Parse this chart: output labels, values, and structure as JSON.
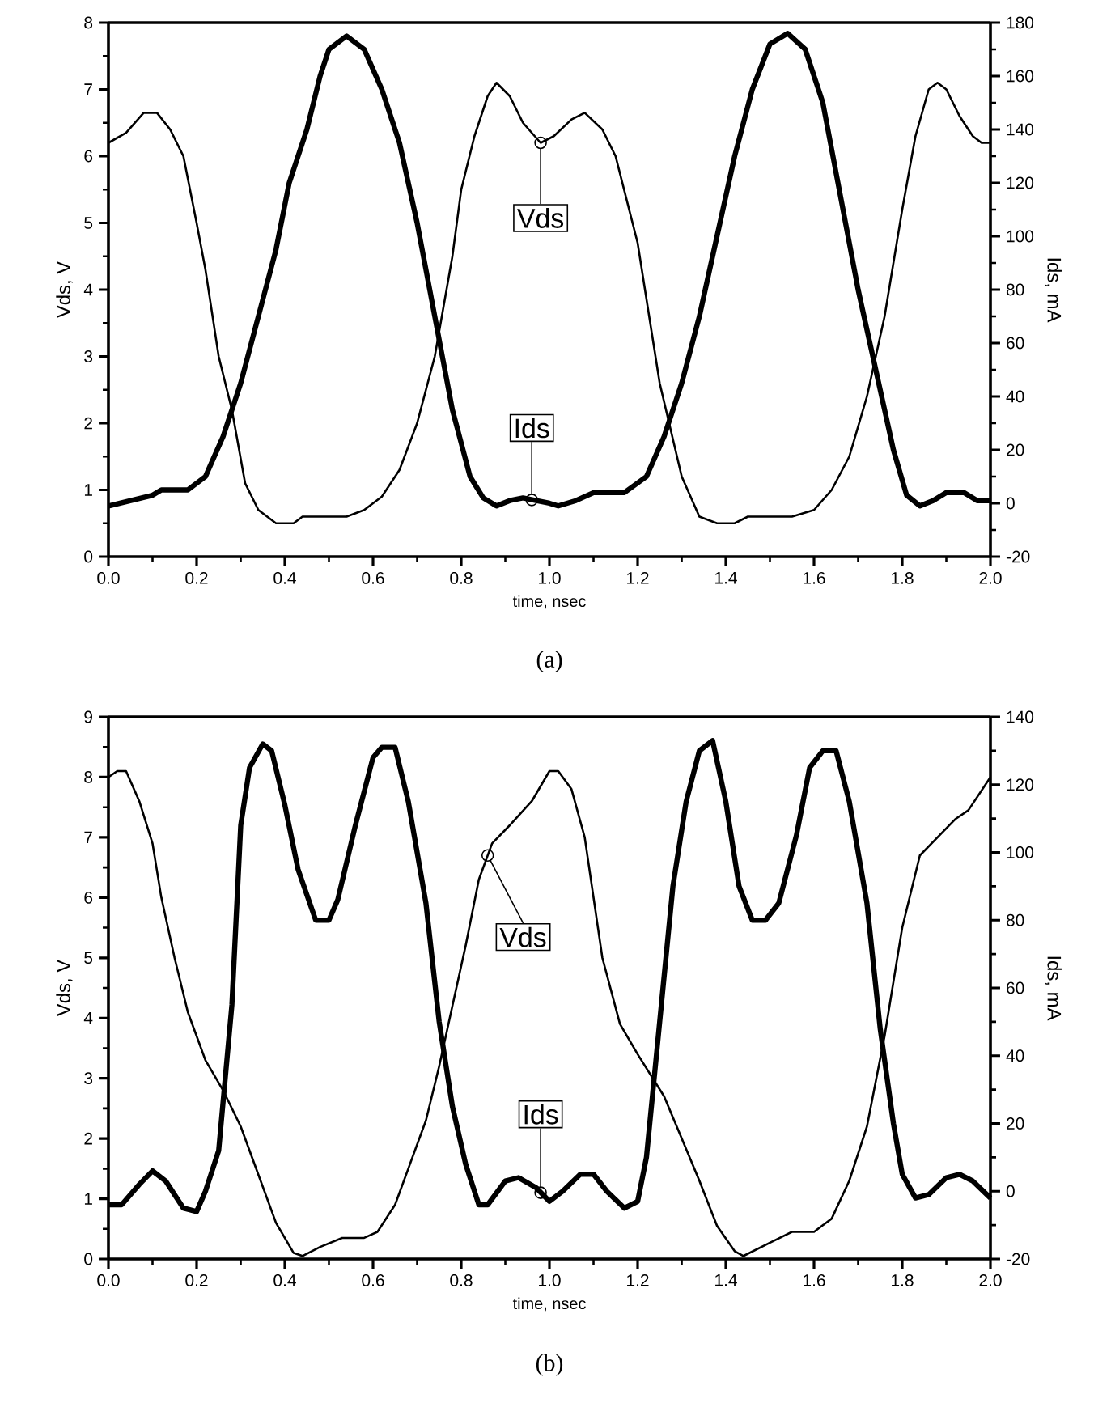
{
  "chart_data": [
    {
      "type": "line",
      "xlabel": "time, nsec",
      "ylabel": "Vds, V",
      "y2label": "Ids, mA",
      "xlim": [
        0,
        2
      ],
      "xticks": [
        {
          "value": 0,
          "label": "0.0"
        },
        0.2,
        0.4,
        0.6,
        0.8,
        {
          "value": 1,
          "label": "1.0"
        },
        1.2,
        1.4,
        1.6,
        1.8,
        {
          "value": 2,
          "label": "2.0"
        }
      ],
      "ylim": [
        0,
        8
      ],
      "yticks": [
        0,
        1,
        2,
        3,
        4,
        5,
        6,
        7,
        8
      ],
      "y2lim": [
        -20,
        180
      ],
      "y2ticks": [
        -20,
        0,
        20,
        40,
        60,
        80,
        100,
        120,
        140,
        160,
        180
      ],
      "series": [
        {
          "color": "#000000",
          "x": [
            0,
            0.04,
            0.08,
            0.11,
            0.14,
            0.17,
            0.2,
            0.22,
            0.25,
            0.28,
            0.31,
            0.34,
            0.38,
            0.42,
            0.44,
            0.5,
            0.54,
            0.58,
            0.62,
            0.66,
            0.7,
            0.74,
            0.78,
            0.8,
            0.83,
            0.86,
            0.88,
            0.91,
            0.94,
            0.98,
            1.01,
            1.05,
            1.08,
            1.12,
            1.15,
            1.2,
            1.25,
            1.3,
            1.34,
            1.38,
            1.42,
            1.45,
            1.55,
            1.6,
            1.64,
            1.68,
            1.72,
            1.76,
            1.8,
            1.83,
            1.86,
            1.88,
            1.9,
            1.93,
            1.96,
            1.98,
            2.0
          ],
          "values": [
            6.2,
            6.35,
            6.65,
            6.65,
            6.4,
            6.0,
            5.0,
            4.3,
            3.0,
            2.2,
            1.1,
            0.7,
            0.5,
            0.5,
            0.6,
            0.6,
            0.6,
            0.7,
            0.9,
            1.3,
            2.0,
            3.0,
            4.5,
            5.5,
            6.3,
            6.9,
            7.1,
            6.9,
            6.5,
            6.2,
            6.3,
            6.55,
            6.65,
            6.4,
            6.0,
            4.7,
            2.6,
            1.2,
            0.6,
            0.5,
            0.5,
            0.6,
            0.6,
            0.7,
            1.0,
            1.5,
            2.4,
            3.6,
            5.2,
            6.3,
            7.0,
            7.1,
            7.0,
            6.6,
            6.3,
            6.2,
            6.2
          ]
        },
        {
          "color": "#000000",
          "axis": "y2",
          "x": [
            0,
            0.05,
            0.1,
            0.12,
            0.18,
            0.22,
            0.26,
            0.3,
            0.34,
            0.38,
            0.41,
            0.45,
            0.48,
            0.5,
            0.54,
            0.58,
            0.62,
            0.66,
            0.7,
            0.74,
            0.78,
            0.82,
            0.85,
            0.88,
            0.91,
            0.94,
            1.0,
            1.02,
            1.06,
            1.1,
            1.17,
            1.22,
            1.26,
            1.3,
            1.34,
            1.38,
            1.42,
            1.46,
            1.5,
            1.54,
            1.58,
            1.62,
            1.66,
            1.7,
            1.74,
            1.78,
            1.81,
            1.84,
            1.87,
            1.9,
            1.94,
            1.97,
            2.0
          ],
          "values": [
            -1,
            1,
            3,
            5,
            5,
            10,
            25,
            45,
            70,
            95,
            120,
            140,
            160,
            170,
            175,
            170,
            155,
            135,
            105,
            70,
            35,
            10,
            2,
            -1,
            1,
            2,
            0,
            -1,
            1,
            4,
            4,
            10,
            25,
            45,
            70,
            100,
            130,
            155,
            172,
            176,
            170,
            150,
            115,
            80,
            50,
            20,
            3,
            -1,
            1,
            4,
            4,
            1,
            1
          ]
        }
      ],
      "annotations": [
        {
          "text": "Vds",
          "x": 0.98,
          "y": 6.2
        },
        {
          "text": "Ids",
          "x": 0.96,
          "y": 0.85
        },
        "(a)"
      ]
    },
    {
      "type": "line",
      "xlabel": "time, nsec",
      "ylabel": "Vds, V",
      "y2label": "Ids, mA",
      "xlim": [
        0,
        2
      ],
      "xticks": [
        {
          "value": 0,
          "label": "0.0"
        },
        0.2,
        0.4,
        0.6,
        0.8,
        {
          "value": 1,
          "label": "1.0"
        },
        1.2,
        1.4,
        1.6,
        1.8,
        {
          "value": 2,
          "label": "2.0"
        }
      ],
      "ylim": [
        0,
        9
      ],
      "yticks": [
        0,
        1,
        2,
        3,
        4,
        5,
        6,
        7,
        8,
        9
      ],
      "y2lim": [
        -20,
        140
      ],
      "y2ticks": [
        -20,
        0,
        20,
        40,
        60,
        80,
        100,
        120,
        140
      ],
      "series": [
        {
          "color": "#000000",
          "x": [
            0,
            0.02,
            0.04,
            0.07,
            0.1,
            0.12,
            0.15,
            0.18,
            0.2,
            0.22,
            0.26,
            0.3,
            0.34,
            0.38,
            0.42,
            0.44,
            0.48,
            0.53,
            0.58,
            0.61,
            0.65,
            0.68,
            0.72,
            0.75,
            0.78,
            0.81,
            0.84,
            0.87,
            0.91,
            0.96,
            1.0,
            1.02,
            1.05,
            1.08,
            1.1,
            1.12,
            1.16,
            1.2,
            1.26,
            1.3,
            1.34,
            1.38,
            1.42,
            1.44,
            1.5,
            1.55,
            1.6,
            1.64,
            1.68,
            1.72,
            1.76,
            1.8,
            1.84,
            1.88,
            1.92,
            1.95,
            2.0
          ],
          "values": [
            8.0,
            8.1,
            8.1,
            7.6,
            6.9,
            6.0,
            5.0,
            4.1,
            3.7,
            3.3,
            2.8,
            2.2,
            1.4,
            0.6,
            0.1,
            0.05,
            0.2,
            0.35,
            0.35,
            0.45,
            0.9,
            1.5,
            2.3,
            3.2,
            4.2,
            5.2,
            6.3,
            6.9,
            7.2,
            7.6,
            8.1,
            8.1,
            7.8,
            7.0,
            6.0,
            5.0,
            3.9,
            3.4,
            2.7,
            2.0,
            1.3,
            0.55,
            0.13,
            0.05,
            0.27,
            0.45,
            0.45,
            0.67,
            1.3,
            2.2,
            3.7,
            5.5,
            6.7,
            7.0,
            7.3,
            7.45,
            8.0
          ]
        },
        {
          "color": "#000000",
          "axis": "y2",
          "x": [
            0,
            0.03,
            0.07,
            0.1,
            0.13,
            0.17,
            0.2,
            0.22,
            0.25,
            0.28,
            0.3,
            0.32,
            0.35,
            0.37,
            0.4,
            0.43,
            0.47,
            0.5,
            0.52,
            0.56,
            0.6,
            0.62,
            0.65,
            0.68,
            0.72,
            0.75,
            0.78,
            0.81,
            0.84,
            0.86,
            0.9,
            0.93,
            0.97,
            1.0,
            1.03,
            1.07,
            1.1,
            1.13,
            1.17,
            1.2,
            1.22,
            1.25,
            1.28,
            1.31,
            1.34,
            1.37,
            1.4,
            1.43,
            1.46,
            1.49,
            1.52,
            1.56,
            1.59,
            1.62,
            1.65,
            1.68,
            1.72,
            1.75,
            1.78,
            1.8,
            1.83,
            1.86,
            1.9,
            1.93,
            1.96,
            2.0
          ],
          "values": [
            -4,
            -4,
            2,
            6,
            3,
            -5,
            -6,
            0,
            12,
            55,
            108,
            125,
            132,
            130,
            114,
            95,
            80,
            80,
            86,
            108,
            128,
            131,
            131,
            115,
            85,
            50,
            25,
            8,
            -4,
            -4,
            3,
            4,
            1,
            -3,
            0,
            5,
            5,
            0,
            -5,
            -3,
            10,
            50,
            90,
            115,
            130,
            133,
            115,
            90,
            80,
            80,
            85,
            105,
            125,
            130,
            130,
            115,
            85,
            48,
            20,
            5,
            -2,
            -1,
            4,
            5,
            3,
            -2
          ]
        }
      ],
      "annotations": [
        {
          "text": "Vds",
          "x": 0.86,
          "y": 6.7
        },
        {
          "text": "Ids",
          "x": 0.98,
          "y": 1.1
        },
        "(b)"
      ]
    }
  ]
}
